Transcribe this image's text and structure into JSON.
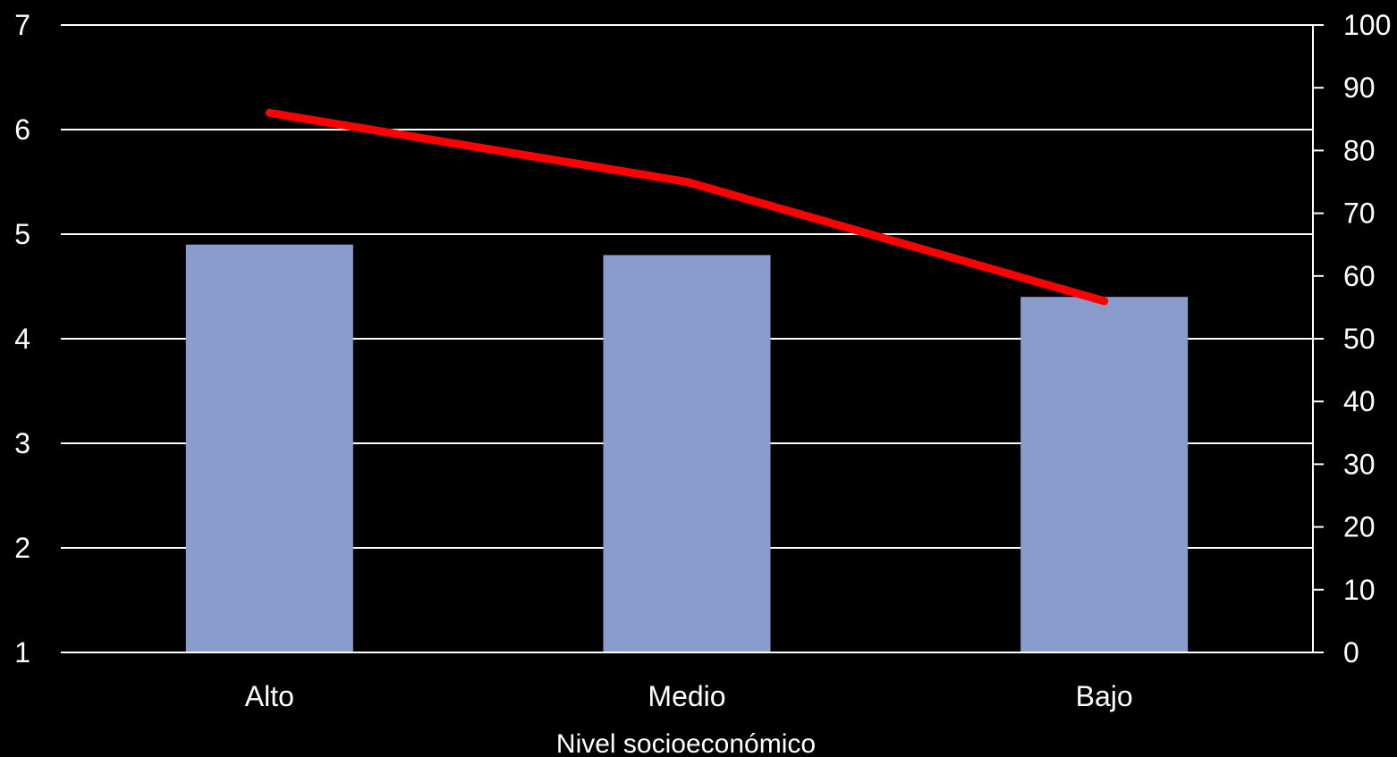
{
  "chart_data": {
    "type": "bar",
    "categories": [
      "Alto",
      "Medio",
      "Bajo"
    ],
    "xlabel": "Nivel socioeconómico",
    "ylabel": "",
    "ylim": [
      1,
      7
    ],
    "y2lim": [
      0,
      100
    ],
    "yticks": [
      "1",
      "2",
      "3",
      "4",
      "5",
      "6",
      "7"
    ],
    "y2ticks": [
      "0",
      "10",
      "20",
      "30",
      "40",
      "50",
      "60",
      "70",
      "80",
      "90",
      "100"
    ],
    "grid": true,
    "legend": "none",
    "series": [
      {
        "type": "bar",
        "axis": "left",
        "values": [
          4.9,
          4.8,
          4.4
        ],
        "color": "#8a9ccb"
      },
      {
        "type": "line",
        "axis": "right",
        "values": [
          86,
          75,
          56
        ],
        "color": "#ff0000"
      }
    ]
  }
}
